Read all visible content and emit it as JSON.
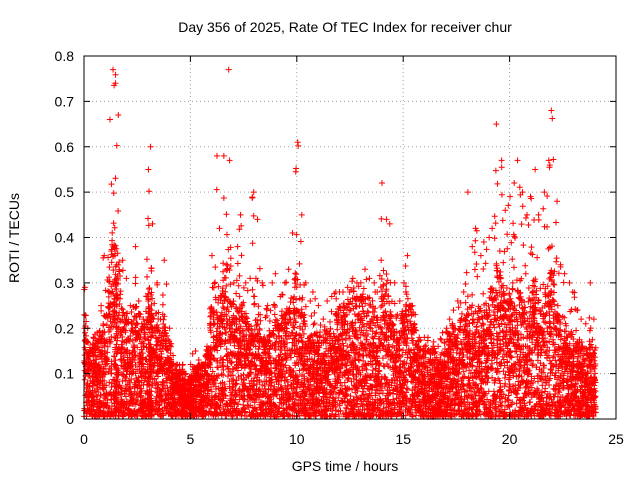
{
  "chart_data": {
    "type": "scatter",
    "title": "Day 356 of 2025, Rate Of TEC Index for receiver chur",
    "xlabel": "GPS time / hours",
    "ylabel": "ROTI / TECUs",
    "xlim": [
      0,
      25
    ],
    "ylim": [
      0,
      0.8
    ],
    "xticks": [
      0,
      5,
      10,
      15,
      20,
      25
    ],
    "yticks": [
      0,
      0.1,
      0.2,
      0.3,
      0.4,
      0.5,
      0.6,
      0.7,
      0.8
    ],
    "xtick_labels": [
      "0",
      "5",
      "10",
      "15",
      "20",
      "25"
    ],
    "ytick_labels": [
      "0",
      "0.1",
      "0.2",
      "0.3",
      "0.4",
      "0.5",
      "0.6",
      "0.7",
      "0.8"
    ],
    "grid": true,
    "marker": "plus",
    "color": "#ff0000",
    "series": [
      {
        "x": [
          0.0,
          0.2,
          0.4,
          0.6,
          0.8,
          1.0,
          1.2,
          1.4,
          1.5,
          1.6,
          1.8,
          2.0,
          2.2,
          2.4,
          2.6,
          2.8,
          3.0,
          3.1,
          3.2,
          3.4,
          3.6,
          3.8,
          4.0,
          4.2,
          4.4,
          4.6,
          4.8,
          5.0,
          5.2,
          5.4,
          5.6,
          5.8,
          6.0,
          6.2,
          6.4,
          6.6,
          6.8,
          7.0,
          7.2,
          7.4,
          7.6,
          7.8,
          8.0,
          8.2,
          8.4,
          8.6,
          8.8,
          9.0,
          9.2,
          9.4,
          9.6,
          9.8,
          10.0,
          10.2,
          10.4,
          10.6,
          10.8,
          11.0,
          11.2,
          11.4,
          11.6,
          11.8,
          12.0,
          12.2,
          12.4,
          12.6,
          12.8,
          13.0,
          13.2,
          13.4,
          13.6,
          13.8,
          14.0,
          14.2,
          14.4,
          14.6,
          14.8,
          15.0,
          15.2,
          15.4,
          15.6,
          15.8,
          16.0,
          16.2,
          16.4,
          16.6,
          16.8,
          17.0,
          17.2,
          17.4,
          17.6,
          17.8,
          18.0,
          18.2,
          18.4,
          18.6,
          18.8,
          19.0,
          19.2,
          19.4,
          19.6,
          19.8,
          20.0,
          20.2,
          20.4,
          20.6,
          20.8,
          21.0,
          21.2,
          21.4,
          21.6,
          21.8,
          22.0,
          22.2,
          22.4,
          22.6,
          22.8,
          23.0,
          23.2,
          23.4,
          23.6,
          23.8,
          24.0
        ],
        "y_max": [
          0.29,
          0.2,
          0.18,
          0.19,
          0.25,
          0.36,
          0.66,
          0.77,
          0.74,
          0.67,
          0.35,
          0.31,
          0.25,
          0.38,
          0.26,
          0.22,
          0.55,
          0.6,
          0.43,
          0.3,
          0.22,
          0.35,
          0.2,
          0.14,
          0.12,
          0.12,
          0.1,
          0.12,
          0.15,
          0.13,
          0.12,
          0.16,
          0.36,
          0.58,
          0.42,
          0.58,
          0.77,
          0.3,
          0.38,
          0.45,
          0.3,
          0.31,
          0.5,
          0.44,
          0.3,
          0.25,
          0.3,
          0.32,
          0.27,
          0.3,
          0.33,
          0.41,
          0.61,
          0.45,
          0.3,
          0.26,
          0.28,
          0.25,
          0.22,
          0.26,
          0.27,
          0.28,
          0.28,
          0.28,
          0.29,
          0.31,
          0.3,
          0.3,
          0.33,
          0.31,
          0.3,
          0.28,
          0.52,
          0.44,
          0.43,
          0.3,
          0.26,
          0.3,
          0.36,
          0.25,
          0.23,
          0.18,
          0.18,
          0.18,
          0.17,
          0.16,
          0.19,
          0.2,
          0.22,
          0.24,
          0.26,
          0.28,
          0.5,
          0.38,
          0.42,
          0.36,
          0.39,
          0.4,
          0.42,
          0.65,
          0.57,
          0.46,
          0.49,
          0.52,
          0.57,
          0.5,
          0.45,
          0.49,
          0.55,
          0.45,
          0.5,
          0.57,
          0.68,
          0.48,
          0.34,
          0.32,
          0.3,
          0.28,
          0.24,
          0.22,
          0.21,
          0.3,
          0.22
        ],
        "y_typical": [
          0.12,
          0.09,
          0.08,
          0.09,
          0.1,
          0.12,
          0.18,
          0.22,
          0.2,
          0.18,
          0.13,
          0.12,
          0.11,
          0.14,
          0.12,
          0.11,
          0.14,
          0.15,
          0.13,
          0.12,
          0.1,
          0.12,
          0.09,
          0.07,
          0.06,
          0.06,
          0.05,
          0.05,
          0.06,
          0.06,
          0.07,
          0.08,
          0.13,
          0.16,
          0.15,
          0.17,
          0.2,
          0.14,
          0.13,
          0.14,
          0.12,
          0.11,
          0.14,
          0.13,
          0.1,
          0.09,
          0.1,
          0.12,
          0.11,
          0.12,
          0.13,
          0.15,
          0.17,
          0.14,
          0.12,
          0.1,
          0.11,
          0.1,
          0.09,
          0.1,
          0.11,
          0.12,
          0.13,
          0.13,
          0.14,
          0.15,
          0.14,
          0.14,
          0.15,
          0.14,
          0.13,
          0.12,
          0.16,
          0.15,
          0.14,
          0.12,
          0.1,
          0.12,
          0.15,
          0.13,
          0.11,
          0.09,
          0.08,
          0.08,
          0.08,
          0.07,
          0.08,
          0.09,
          0.1,
          0.11,
          0.11,
          0.12,
          0.14,
          0.13,
          0.13,
          0.13,
          0.14,
          0.14,
          0.15,
          0.18,
          0.17,
          0.15,
          0.15,
          0.15,
          0.16,
          0.15,
          0.14,
          0.15,
          0.16,
          0.14,
          0.15,
          0.16,
          0.17,
          0.14,
          0.12,
          0.11,
          0.1,
          0.1,
          0.09,
          0.08,
          0.08,
          0.09,
          0.08
        ]
      }
    ]
  }
}
